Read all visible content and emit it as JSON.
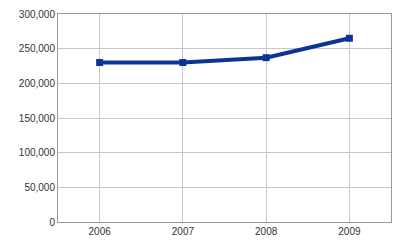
{
  "chart_data": {
    "type": "line",
    "categories": [
      "2006",
      "2007",
      "2008",
      "2009"
    ],
    "values": [
      230000,
      230000,
      237000,
      265000
    ],
    "color": "#0b3595",
    "marker": "square",
    "ylim": [
      0,
      300000
    ],
    "yticks": [
      0,
      {
        "value": 50000,
        "label": "50,000"
      },
      {
        "value": 100000,
        "label": "100,000"
      },
      {
        "value": 150000,
        "label": "150,000"
      },
      {
        "value": 200000,
        "label": "200,000"
      },
      {
        "value": 250000,
        "label": "250,000"
      },
      {
        "value": 300000,
        "label": "300,000"
      }
    ],
    "grid": true
  }
}
